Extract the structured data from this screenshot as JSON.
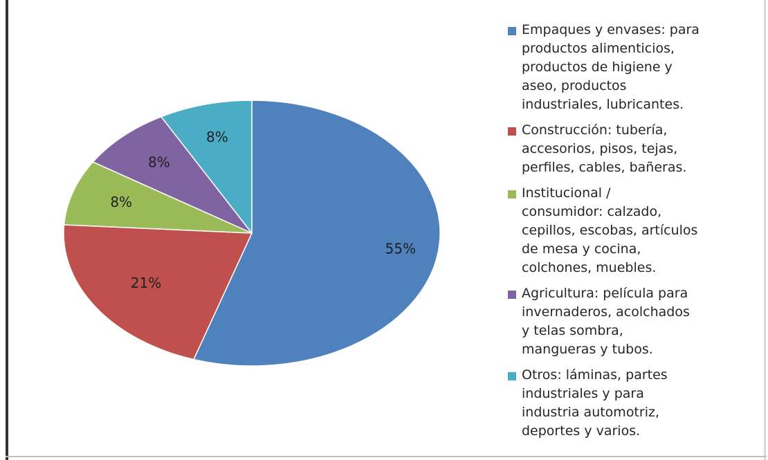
{
  "chart_data": {
    "type": "pie",
    "title": "",
    "start_angle_deg": 0,
    "direction": "clockwise",
    "legend_position": "right",
    "slices": [
      {
        "label": "Empaques y envases: para\nproductos alimenticios,\nproductos de higiene y\naseo,     productos\nindustriales, lubricantes.",
        "value": 55,
        "display": "55%",
        "color": "#4f81bd"
      },
      {
        "label": "Construcción: tubería,\naccesorios, pisos, tejas,\nperfiles, cables, bañeras.",
        "value": 21,
        "display": "21%",
        "color": "#c0504d"
      },
      {
        "label": "Institucional /\nconsumidor: calzado,\ncepillos, escobas, artículos\nde mesa y cocina,\ncolchones, muebles.",
        "value": 8,
        "display": "8%",
        "color": "#9bbb59"
      },
      {
        "label": "Agricultura: película para\ninvernaderos, acolchados\ny telas sombra,\nmangueras y tubos.",
        "value": 8,
        "display": "8%",
        "color": "#8064a2"
      },
      {
        "label": "Otros: láminas, partes\nindustriales y para\nindustria automotriz,\ndeportes y varios.",
        "value": 8,
        "display": "8%",
        "color": "#4bacc6"
      }
    ]
  }
}
